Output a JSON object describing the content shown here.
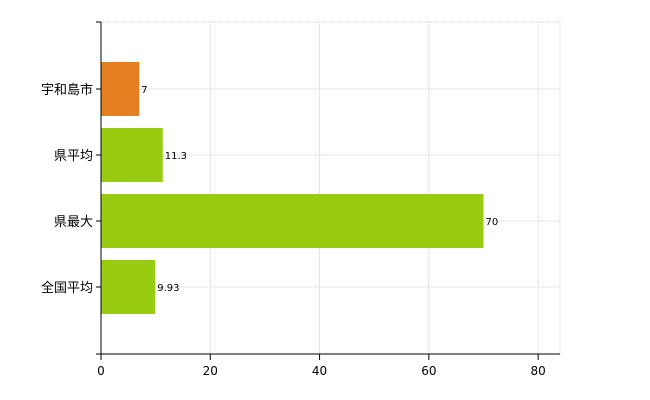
{
  "chart_data": {
    "type": "bar",
    "orientation": "horizontal",
    "categories": [
      "宇和島市",
      "県平均",
      "県最大",
      "全国平均"
    ],
    "values": [
      7,
      11.3,
      70,
      9.93
    ],
    "value_labels": [
      "7",
      "11.3",
      "70",
      "9.93"
    ],
    "bar_colors": [
      "#e67e22",
      "#99cc11",
      "#99cc11",
      "#99cc11"
    ],
    "xlim": [
      0,
      84
    ],
    "x_ticks": [
      0,
      20,
      40,
      60,
      80
    ],
    "x_tick_labels": [
      "0",
      "20",
      "40",
      "60",
      "80"
    ],
    "grid": true,
    "title": "",
    "xlabel": "",
    "ylabel": ""
  }
}
